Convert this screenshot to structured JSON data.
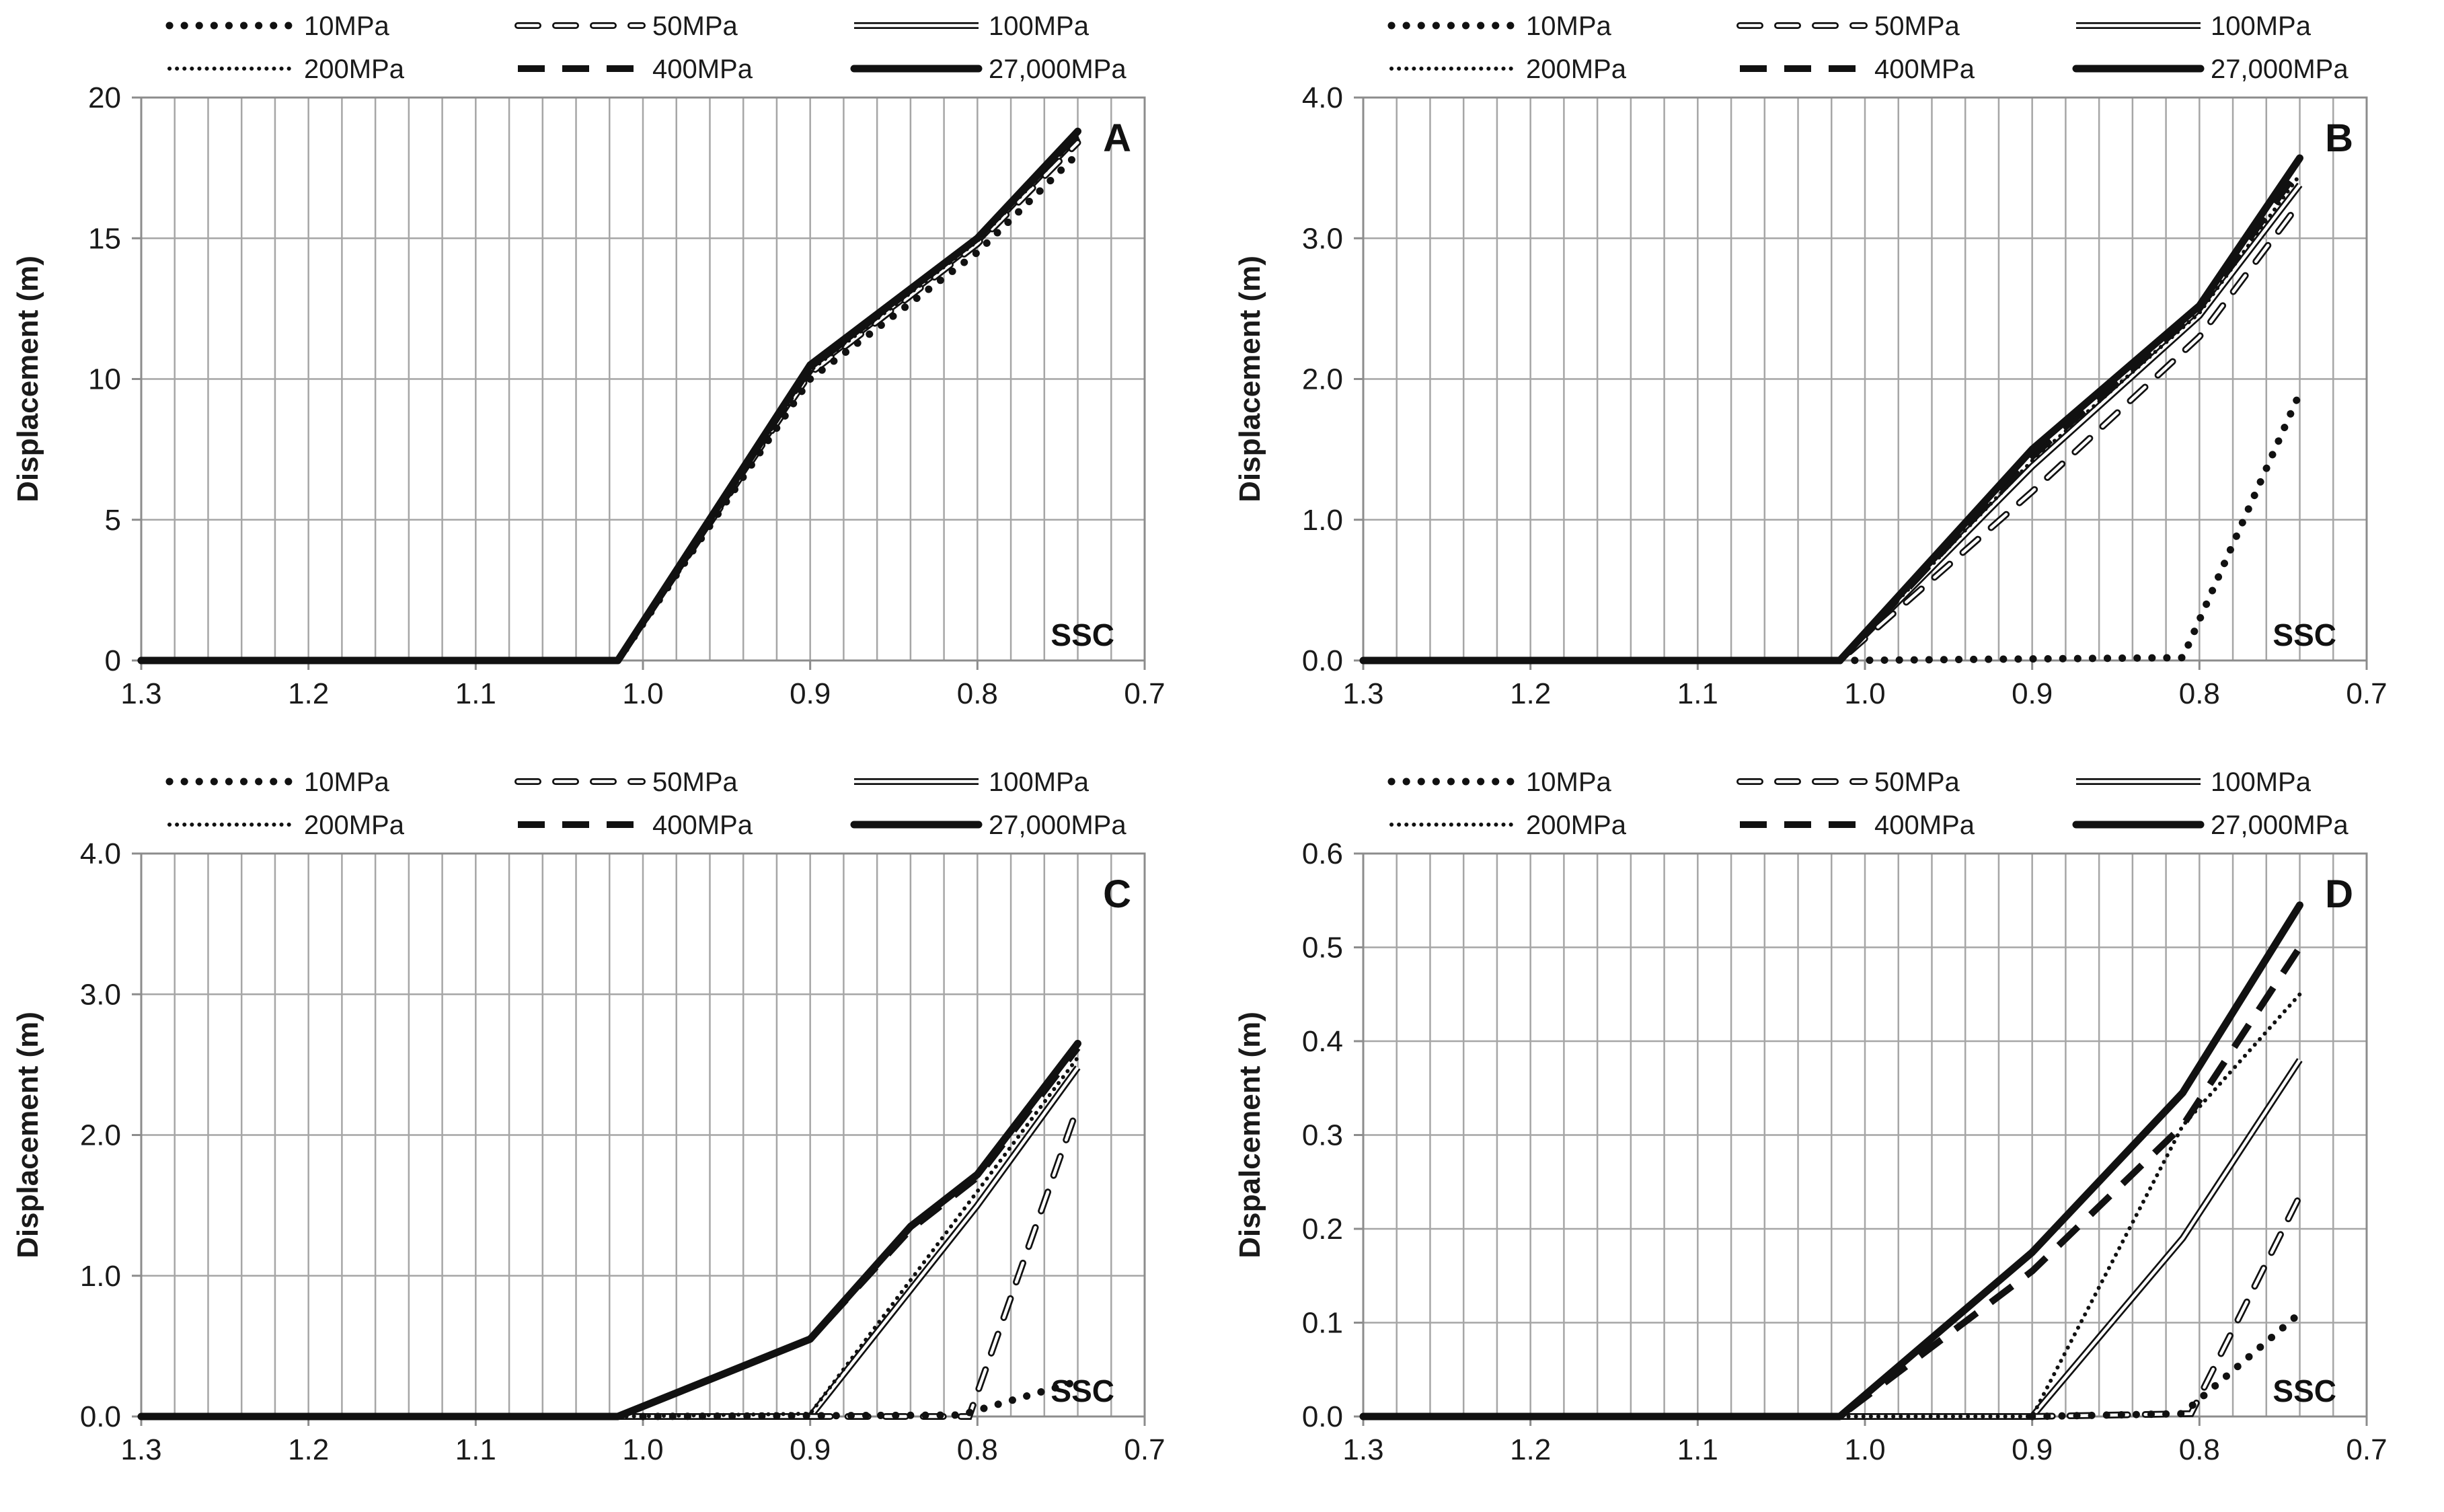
{
  "figure": {
    "legend": [
      {
        "key": "s10",
        "label": "10MPa",
        "style": "bold-dotted"
      },
      {
        "key": "s50",
        "label": "50MPa",
        "style": "hollow-dashed"
      },
      {
        "key": "s100",
        "label": "100MPa",
        "style": "hollow-solid"
      },
      {
        "key": "s200",
        "label": "200MPa",
        "style": "fine-dotted"
      },
      {
        "key": "s400",
        "label": "400MPa",
        "style": "bold-dashed"
      },
      {
        "key": "s27000",
        "label": "27,000MPa",
        "style": "bold-solid"
      }
    ],
    "colors": {
      "line": "#111111",
      "grid": "#a6a6a6",
      "frame": "#8c8c8c",
      "text": "#1a1a1a"
    }
  },
  "chart_data": [
    {
      "panel": "A",
      "type": "line",
      "annotation": "SSC",
      "xlabel": "",
      "ylabel": "Displacement (m)",
      "xlim": [
        1.3,
        0.7
      ],
      "x_reversed": true,
      "ylim": [
        0,
        20
      ],
      "xticks": [
        "1.3",
        "1.2",
        "1.1",
        "1.0",
        "0.9",
        "0.8",
        "0.7"
      ],
      "yticks": [
        "0",
        "5",
        "10",
        "15",
        "20"
      ],
      "grid": "vertical every 0.02, horizontal every 5",
      "series": [
        {
          "key": "s10",
          "name": "10MPa",
          "x": [
            1.3,
            1.015,
            0.9,
            0.8,
            0.74
          ],
          "y": [
            0,
            0,
            10.0,
            14.5,
            18.0
          ]
        },
        {
          "key": "s50",
          "name": "50MPa",
          "x": [
            1.3,
            1.015,
            0.9,
            0.8,
            0.74
          ],
          "y": [
            0,
            0,
            10.2,
            14.8,
            18.4
          ]
        },
        {
          "key": "s100",
          "name": "100MPa",
          "x": [
            1.3,
            1.015,
            0.9,
            0.8,
            0.74
          ],
          "y": [
            0,
            0,
            10.3,
            14.9,
            18.6
          ]
        },
        {
          "key": "s200",
          "name": "200MPa",
          "x": [
            1.3,
            1.015,
            0.9,
            0.8,
            0.74
          ],
          "y": [
            0,
            0,
            10.3,
            14.9,
            18.6
          ]
        },
        {
          "key": "s400",
          "name": "400MPa",
          "x": [
            1.3,
            1.015,
            0.9,
            0.8,
            0.74
          ],
          "y": [
            0,
            0,
            10.4,
            15.0,
            18.7
          ]
        },
        {
          "key": "s27000",
          "name": "27,000MPa",
          "x": [
            1.3,
            1.015,
            0.9,
            0.8,
            0.74
          ],
          "y": [
            0,
            0,
            10.5,
            15.0,
            18.8
          ]
        }
      ]
    },
    {
      "panel": "B",
      "type": "line",
      "annotation": "SSC",
      "xlabel": "",
      "ylabel": "Displacement (m)",
      "xlim": [
        1.3,
        0.7
      ],
      "x_reversed": true,
      "ylim": [
        0,
        4.0
      ],
      "xticks": [
        "1.3",
        "1.2",
        "1.1",
        "1.0",
        "0.9",
        "0.8",
        "0.7"
      ],
      "yticks": [
        "0.0",
        "1.0",
        "2.0",
        "3.0",
        "4.0"
      ],
      "grid": "vertical every 0.02, horizontal every 1.0",
      "series": [
        {
          "key": "s10",
          "name": "10MPa",
          "x": [
            1.015,
            0.81,
            0.74
          ],
          "y": [
            0,
            0.02,
            1.9
          ]
        },
        {
          "key": "s50",
          "name": "50MPa",
          "x": [
            1.3,
            1.015,
            0.9,
            0.8,
            0.74
          ],
          "y": [
            0,
            0,
            1.2,
            2.3,
            3.25
          ]
        },
        {
          "key": "s100",
          "name": "100MPa",
          "x": [
            1.3,
            1.015,
            0.9,
            0.8,
            0.74
          ],
          "y": [
            0,
            0,
            1.38,
            2.45,
            3.38
          ]
        },
        {
          "key": "s200",
          "name": "200MPa",
          "x": [
            1.3,
            1.015,
            0.9,
            0.8,
            0.74
          ],
          "y": [
            0,
            0,
            1.42,
            2.47,
            3.45
          ]
        },
        {
          "key": "s400",
          "name": "400MPa",
          "x": [
            1.3,
            1.015,
            0.9,
            0.8,
            0.74
          ],
          "y": [
            0,
            0,
            1.45,
            2.5,
            3.5
          ]
        },
        {
          "key": "s27000",
          "name": "27,000MPa",
          "x": [
            1.3,
            1.015,
            0.9,
            0.8,
            0.74
          ],
          "y": [
            0,
            0,
            1.5,
            2.52,
            3.57
          ]
        }
      ]
    },
    {
      "panel": "C",
      "type": "line",
      "annotation": "SSC",
      "xlabel": "",
      "ylabel": "Displacement (m)",
      "xlim": [
        1.3,
        0.7
      ],
      "x_reversed": true,
      "ylim": [
        0,
        4.0
      ],
      "xticks": [
        "1.3",
        "1.2",
        "1.1",
        "1.0",
        "0.9",
        "0.8",
        "0.7"
      ],
      "yticks": [
        "0.0",
        "1.0",
        "2.0",
        "3.0",
        "4.0"
      ],
      "grid": "vertical every 0.02, horizontal every 1.0",
      "series": [
        {
          "key": "s10",
          "name": "10MPa",
          "x": [
            1.0,
            0.81,
            0.74
          ],
          "y": [
            0,
            0.01,
            0.25
          ]
        },
        {
          "key": "s50",
          "name": "50MPa",
          "x": [
            0.9,
            0.805,
            0.74
          ],
          "y": [
            0,
            0,
            2.2
          ]
        },
        {
          "key": "s100",
          "name": "100MPa",
          "x": [
            1.3,
            1.015,
            0.9,
            0.8,
            0.74
          ],
          "y": [
            0,
            0,
            0,
            1.5,
            2.48
          ]
        },
        {
          "key": "s200",
          "name": "200MPa",
          "x": [
            1.3,
            1.015,
            0.9,
            0.8,
            0.74
          ],
          "y": [
            0,
            0,
            0.02,
            1.6,
            2.55
          ]
        },
        {
          "key": "s400",
          "name": "400MPa",
          "x": [
            1.3,
            1.015,
            0.9,
            0.84,
            0.8,
            0.74
          ],
          "y": [
            0,
            0,
            0.55,
            1.33,
            1.7,
            2.62
          ]
        },
        {
          "key": "s27000",
          "name": "27,000MPa",
          "x": [
            1.3,
            1.015,
            0.9,
            0.84,
            0.8,
            0.74
          ],
          "y": [
            0,
            0,
            0.55,
            1.35,
            1.72,
            2.65
          ]
        }
      ]
    },
    {
      "panel": "D",
      "type": "line",
      "annotation": "SSC",
      "xlabel": "",
      "ylabel": "Dispalcement (m)",
      "xlim": [
        1.3,
        0.7
      ],
      "x_reversed": true,
      "ylim": [
        0,
        0.6
      ],
      "xticks": [
        "1.3",
        "1.2",
        "1.1",
        "1.0",
        "0.9",
        "0.8",
        "0.7"
      ],
      "yticks": [
        "0.0",
        "0.1",
        "0.2",
        "0.3",
        "0.4",
        "0.5",
        "0.6"
      ],
      "grid": "vertical every 0.02, horizontal every 0.1",
      "series": [
        {
          "key": "s10",
          "name": "10MPa",
          "x": [
            0.9,
            0.81,
            0.74
          ],
          "y": [
            0,
            0.003,
            0.11
          ]
        },
        {
          "key": "s50",
          "name": "50MPa",
          "x": [
            0.9,
            0.805,
            0.74
          ],
          "y": [
            0,
            0.003,
            0.235
          ]
        },
        {
          "key": "s100",
          "name": "100MPa",
          "x": [
            1.3,
            1.015,
            0.9,
            0.81,
            0.74
          ],
          "y": [
            0,
            0,
            0,
            0.19,
            0.38
          ]
        },
        {
          "key": "s200",
          "name": "200MPa",
          "x": [
            1.3,
            1.015,
            0.9,
            0.81,
            0.74
          ],
          "y": [
            0,
            0,
            0,
            0.31,
            0.45
          ]
        },
        {
          "key": "s400",
          "name": "400MPa",
          "x": [
            1.3,
            1.015,
            0.9,
            0.81,
            0.74
          ],
          "y": [
            0,
            0,
            0.155,
            0.31,
            0.5
          ]
        },
        {
          "key": "s27000",
          "name": "27,000MPa",
          "x": [
            1.3,
            1.015,
            0.9,
            0.81,
            0.74
          ],
          "y": [
            0,
            0,
            0.175,
            0.345,
            0.545
          ]
        }
      ]
    }
  ]
}
